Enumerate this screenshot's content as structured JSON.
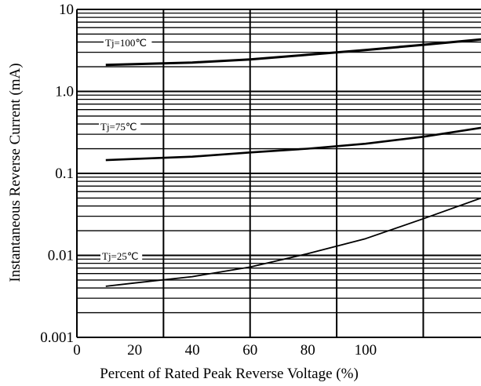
{
  "chart_data": {
    "type": "line",
    "title": "",
    "xlabel": "Percent of Rated Peak Reverse Voltage (%)",
    "ylabel": "Instantaneous Reverse Current (mA)",
    "x_scale": "linear",
    "y_scale": "log",
    "xlim": [
      0,
      140
    ],
    "ylim": [
      0.001,
      10
    ],
    "x_tick_labels": [
      "0",
      "20",
      "40",
      "60",
      "80",
      "100"
    ],
    "x_ticks": [
      0,
      20,
      40,
      60,
      80,
      100
    ],
    "y_tick_labels": [
      "0.001",
      "0.01",
      "0.1",
      "1.0",
      "10"
    ],
    "y_ticks": [
      0.001,
      0.01,
      0.1,
      1,
      10
    ],
    "grid": true,
    "x_vertical_gridlines": [
      0,
      30,
      60,
      90,
      120
    ],
    "series": [
      {
        "name": "Tj=100℃",
        "label_text": "Tj=100℃",
        "x": [
          10,
          20,
          40,
          60,
          80,
          100,
          120,
          140
        ],
        "y": [
          2.1,
          2.15,
          2.25,
          2.45,
          2.8,
          3.2,
          3.7,
          4.3
        ]
      },
      {
        "name": "Tj=75℃",
        "label_text": "Tj=75℃",
        "x": [
          10,
          20,
          40,
          60,
          80,
          100,
          120,
          140
        ],
        "y": [
          0.145,
          0.15,
          0.16,
          0.18,
          0.2,
          0.23,
          0.28,
          0.36
        ]
      },
      {
        "name": "Tj=25℃",
        "label_text": "Tj=25℃",
        "x": [
          10,
          20,
          40,
          60,
          80,
          100,
          120,
          140
        ],
        "y": [
          0.0042,
          0.0046,
          0.0055,
          0.0072,
          0.0105,
          0.016,
          0.028,
          0.05
        ]
      }
    ],
    "colors": {
      "line": "#000000",
      "grid": "#000000",
      "background": "#ffffff"
    }
  }
}
